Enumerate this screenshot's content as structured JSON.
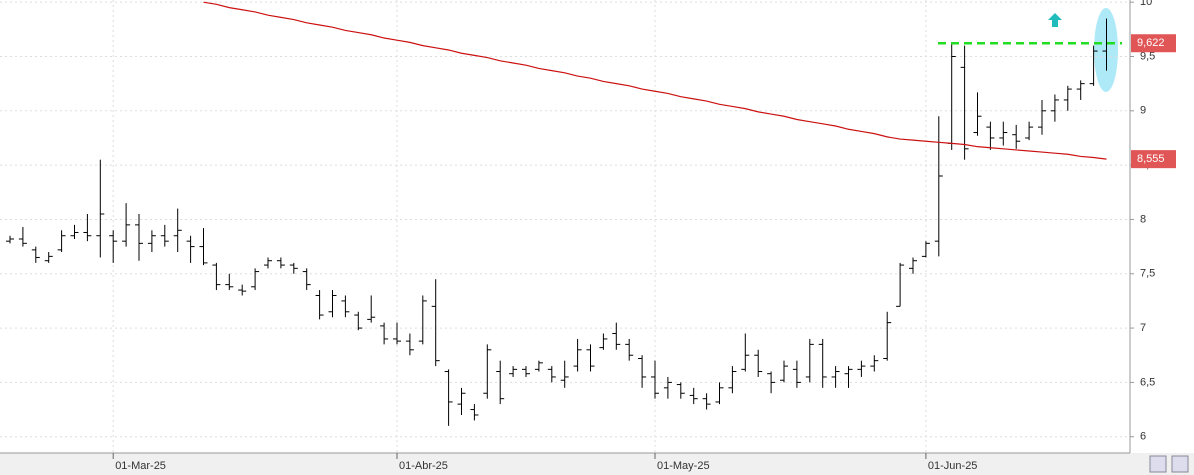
{
  "chart_data": {
    "type": "ohlc",
    "color": "#000000",
    "categories": [
      null,
      null,
      null,
      null,
      null,
      null,
      null,
      null,
      "01-Mar-25",
      null,
      null,
      null,
      null,
      null,
      null,
      null,
      null,
      null,
      null,
      null,
      null,
      null,
      null,
      null,
      null,
      null,
      null,
      null,
      null,
      null,
      "01-Abr-25",
      null,
      null,
      null,
      null,
      null,
      null,
      null,
      null,
      null,
      null,
      null,
      null,
      null,
      null,
      null,
      null,
      null,
      null,
      null,
      "01-May-25",
      null,
      null,
      null,
      null,
      null,
      null,
      null,
      null,
      null,
      null,
      null,
      null,
      null,
      null,
      null,
      null,
      null,
      null,
      null,
      null,
      "01-Jun-25",
      null,
      null,
      null,
      null,
      null,
      null,
      null,
      null,
      null,
      null,
      null,
      null,
      null,
      null
    ],
    "open": [
      7.8,
      7.82,
      7.72,
      7.62,
      7.72,
      7.85,
      7.88,
      7.85,
      7.85,
      7.8,
      7.95,
      7.78,
      7.85,
      7.85,
      7.8,
      7.75,
      7.58,
      7.4,
      7.35,
      7.38,
      7.58,
      7.62,
      7.58,
      7.52,
      7.3,
      7.15,
      7.25,
      7.12,
      7.08,
      7.02,
      6.9,
      6.88,
      6.88,
      7.2,
      6.6,
      6.3,
      6.25,
      6.4,
      6.6,
      6.58,
      6.62,
      6.62,
      6.62,
      6.52,
      6.65,
      6.8,
      6.82,
      6.95,
      6.85,
      6.72,
      6.55,
      6.45,
      6.48,
      6.38,
      6.35,
      6.32,
      6.45,
      6.62,
      6.75,
      6.58,
      6.52,
      6.62,
      6.55,
      6.85,
      6.55,
      6.58,
      6.62,
      6.65,
      6.72,
      7.2,
      7.55,
      7.66,
      7.8,
      8.7,
      9.4,
      8.8,
      8.85,
      8.75,
      8.78,
      8.75,
      8.85,
      9.0,
      9.1,
      9.2,
      9.25,
      9.55
    ],
    "high": [
      7.85,
      7.93,
      7.75,
      7.7,
      7.9,
      7.95,
      8.05,
      8.55,
      7.9,
      8.15,
      8.05,
      7.9,
      7.95,
      8.1,
      7.85,
      7.92,
      7.6,
      7.5,
      7.4,
      7.55,
      7.65,
      7.65,
      7.6,
      7.55,
      7.35,
      7.35,
      7.3,
      7.15,
      7.3,
      7.05,
      7.05,
      6.95,
      7.3,
      7.45,
      6.62,
      6.45,
      6.3,
      6.85,
      6.7,
      6.65,
      6.65,
      6.7,
      6.65,
      6.7,
      6.9,
      6.85,
      6.95,
      7.05,
      6.9,
      6.75,
      6.7,
      6.55,
      6.5,
      6.45,
      6.4,
      6.5,
      6.65,
      6.95,
      6.8,
      6.6,
      6.7,
      6.7,
      6.9,
      6.9,
      6.65,
      6.65,
      6.7,
      6.75,
      7.15,
      7.6,
      7.65,
      7.8,
      8.95,
      9.63,
      9.6,
      9.17,
      8.9,
      8.9,
      8.87,
      8.9,
      9.1,
      9.15,
      9.23,
      9.28,
      9.6,
      9.85
    ],
    "low": [
      7.78,
      7.75,
      7.6,
      7.6,
      7.7,
      7.82,
      7.8,
      7.65,
      7.6,
      7.75,
      7.62,
      7.7,
      7.75,
      7.7,
      7.6,
      7.58,
      7.35,
      7.35,
      7.3,
      7.35,
      7.55,
      7.55,
      7.5,
      7.35,
      7.08,
      7.1,
      7.1,
      6.98,
      7.05,
      6.85,
      6.85,
      6.75,
      6.85,
      6.65,
      6.1,
      6.2,
      6.15,
      6.35,
      6.3,
      6.55,
      6.55,
      6.6,
      6.5,
      6.45,
      6.6,
      6.6,
      6.8,
      6.8,
      6.7,
      6.45,
      6.35,
      6.35,
      6.35,
      6.3,
      6.25,
      6.3,
      6.4,
      6.6,
      6.55,
      6.4,
      6.5,
      6.45,
      6.5,
      6.45,
      6.45,
      6.45,
      6.55,
      6.6,
      6.7,
      7.2,
      7.5,
      7.65,
      7.66,
      8.64,
      8.55,
      8.77,
      8.64,
      8.68,
      8.65,
      8.73,
      8.78,
      8.9,
      9.0,
      9.1,
      9.23,
      9.37
    ],
    "close": [
      7.82,
      7.78,
      7.65,
      7.66,
      7.85,
      7.88,
      7.85,
      8.05,
      7.8,
      7.95,
      7.78,
      7.85,
      7.8,
      7.9,
      7.75,
      7.6,
      7.4,
      7.38,
      7.34,
      7.52,
      7.62,
      7.58,
      7.55,
      7.4,
      7.12,
      7.3,
      7.15,
      7.0,
      7.1,
      6.9,
      6.88,
      6.8,
      7.25,
      6.7,
      6.32,
      6.4,
      6.2,
      6.8,
      6.35,
      6.62,
      6.58,
      6.68,
      6.55,
      6.55,
      6.8,
      6.65,
      6.9,
      6.85,
      6.75,
      6.55,
      6.4,
      6.5,
      6.4,
      6.35,
      6.3,
      6.45,
      6.6,
      6.75,
      6.6,
      6.5,
      6.65,
      6.5,
      6.85,
      6.55,
      6.6,
      6.62,
      6.65,
      6.7,
      7.05,
      7.58,
      7.62,
      7.78,
      8.4,
      9.5,
      8.65,
      8.95,
      8.75,
      8.8,
      8.72,
      8.85,
      9.0,
      9.1,
      9.2,
      9.25,
      9.55,
      9.622
    ],
    "ma": {
      "color": "#cc1111",
      "values": [
        null,
        null,
        null,
        null,
        null,
        null,
        null,
        null,
        null,
        null,
        null,
        null,
        null,
        null,
        null,
        10.0,
        9.98,
        9.95,
        9.93,
        9.91,
        9.88,
        9.86,
        9.84,
        9.81,
        9.79,
        9.77,
        9.74,
        9.72,
        9.7,
        9.67,
        9.65,
        9.63,
        9.6,
        9.58,
        9.56,
        9.53,
        9.51,
        9.49,
        9.46,
        9.44,
        9.42,
        9.39,
        9.37,
        9.35,
        9.32,
        9.3,
        9.27,
        9.25,
        9.23,
        9.2,
        9.18,
        9.16,
        9.13,
        9.11,
        9.09,
        9.06,
        9.04,
        9.02,
        8.99,
        8.97,
        8.95,
        8.92,
        8.9,
        8.88,
        8.86,
        8.83,
        8.81,
        8.79,
        8.76,
        8.74,
        8.73,
        8.72,
        8.71,
        8.7,
        8.69,
        8.67,
        8.66,
        8.65,
        8.64,
        8.63,
        8.62,
        8.61,
        8.6,
        8.58,
        8.57,
        8.555
      ]
    },
    "last_labels": {
      "close": "9,622",
      "ma": "8,555",
      "color": "#e05555"
    },
    "level_line": {
      "color": "#22dd22"
    },
    "ylim": [
      5.85,
      10.02
    ],
    "yticks": [
      6,
      {
        "value": 6.5,
        "label": "6,5"
      },
      7,
      {
        "value": 7.5,
        "label": "7,5"
      },
      8,
      {
        "value": 8.5,
        "label": "8,5"
      },
      9,
      {
        "value": 9.5,
        "label": "9,5"
      },
      10
    ],
    "grid": true
  }
}
